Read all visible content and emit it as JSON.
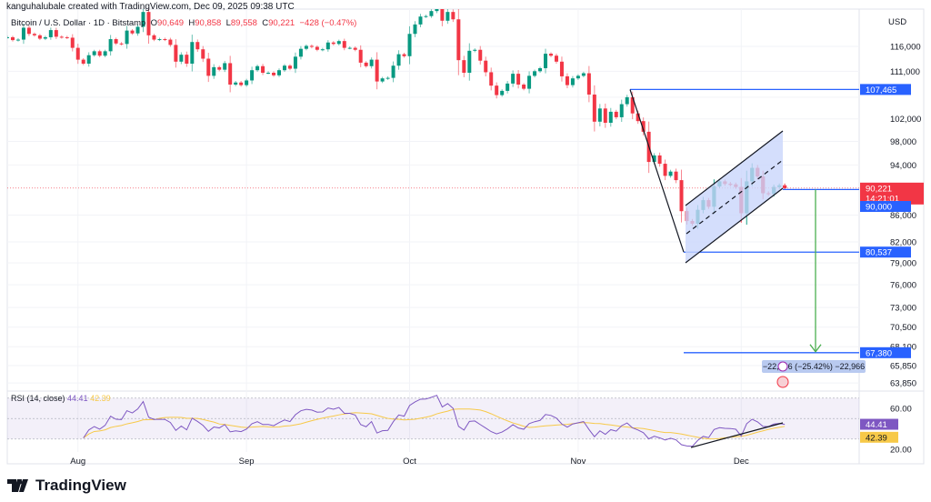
{
  "credit": "kanguhalubale created with TradingView.com, Dec 09, 2025 09:38 UTC",
  "legend": {
    "symbol": "Bitcoin / U.S. Dollar · 1D · Bitstamp",
    "o_label": "O",
    "o": "90,649",
    "h_label": "H",
    "h": "90,858",
    "l_label": "L",
    "l": "89,558",
    "c_label": "C",
    "c": "90,221",
    "change": "−428 (−0.47%)"
  },
  "currency": "USD",
  "price_tags": {
    "last": "90,221",
    "countdown": "14:21:01",
    "level_top": "107,465",
    "level_90k": "90,000",
    "level_low": "80,537",
    "level_target": "67,380"
  },
  "measure_label": "−22,966 (−25.42%) −22,966",
  "rsi": {
    "label": "RSI (14, close)",
    "value": "44.41",
    "ma_value": "42.39",
    "ticks": [
      "60.00",
      "20.00"
    ]
  },
  "brand": "TradingView",
  "colors": {
    "up": "#089981",
    "down": "#f23645",
    "drawing": "#2962ff",
    "rsi": "#7e57c2",
    "rsi_ma": "#f7c948",
    "channel_fill": "#c9d6fb",
    "target_arrow": "#4caf50"
  },
  "chart_data": {
    "type": "candlestick",
    "scale": "log",
    "y_ticks": [
      "116,000",
      "111,000",
      "106,000",
      "102,000",
      "98,000",
      "94,000",
      "86,000",
      "82,000",
      "79,000",
      "76,000",
      "73,000",
      "70,500",
      "68,100",
      "65,850",
      "63,850"
    ],
    "x_ticks": [
      "Aug",
      "Sep",
      "Oct",
      "Nov",
      "Dec"
    ],
    "start_date": "2025-07-19",
    "closes": [
      117900,
      117300,
      117400,
      119900,
      118600,
      118300,
      117600,
      117900,
      119400,
      118000,
      117900,
      117800,
      115700,
      113300,
      112500,
      114200,
      115000,
      114100,
      115000,
      117500,
      116600,
      116500,
      119300,
      118700,
      120100,
      123300,
      118300,
      117400,
      117500,
      117400,
      116300,
      112900,
      114300,
      112500,
      116900,
      115400,
      113500,
      110100,
      111800,
      111300,
      112600,
      108400,
      108800,
      108300,
      109200,
      111200,
      112000,
      110700,
      110700,
      110200,
      111200,
      112100,
      111500,
      113900,
      115500,
      116100,
      115900,
      115300,
      115400,
      116800,
      116500,
      117100,
      115700,
      115700,
      115300,
      112700,
      112000,
      113300,
      109000,
      109600,
      109700,
      112100,
      114400,
      114000,
      118600,
      120600,
      122300,
      122400,
      123500,
      124800,
      121400,
      123300,
      121700,
      113200,
      110700,
      115100,
      115300,
      113100,
      110800,
      108200,
      106400,
      107200,
      108600,
      110500,
      108400,
      107600,
      110100,
      111000,
      111600,
      114500,
      114100,
      112900,
      110000,
      108300,
      109600,
      110100,
      110600,
      106500,
      101500,
      103900,
      101300,
      103300,
      102300,
      104700,
      106000,
      103000,
      101600,
      99700,
      94500,
      95600,
      94200,
      92200,
      92900,
      91500,
      86600,
      85100,
      84700,
      86800,
      88300,
      87300,
      90500,
      91300,
      90900,
      90800,
      90400,
      86300,
      91300,
      93500,
      92100,
      89400,
      89300,
      90400,
      90649,
      90221
    ],
    "levels": [
      107465,
      90000,
      80537,
      67380
    ],
    "rsi_period": 14,
    "rsi_levels": [
      70,
      50,
      30
    ]
  }
}
